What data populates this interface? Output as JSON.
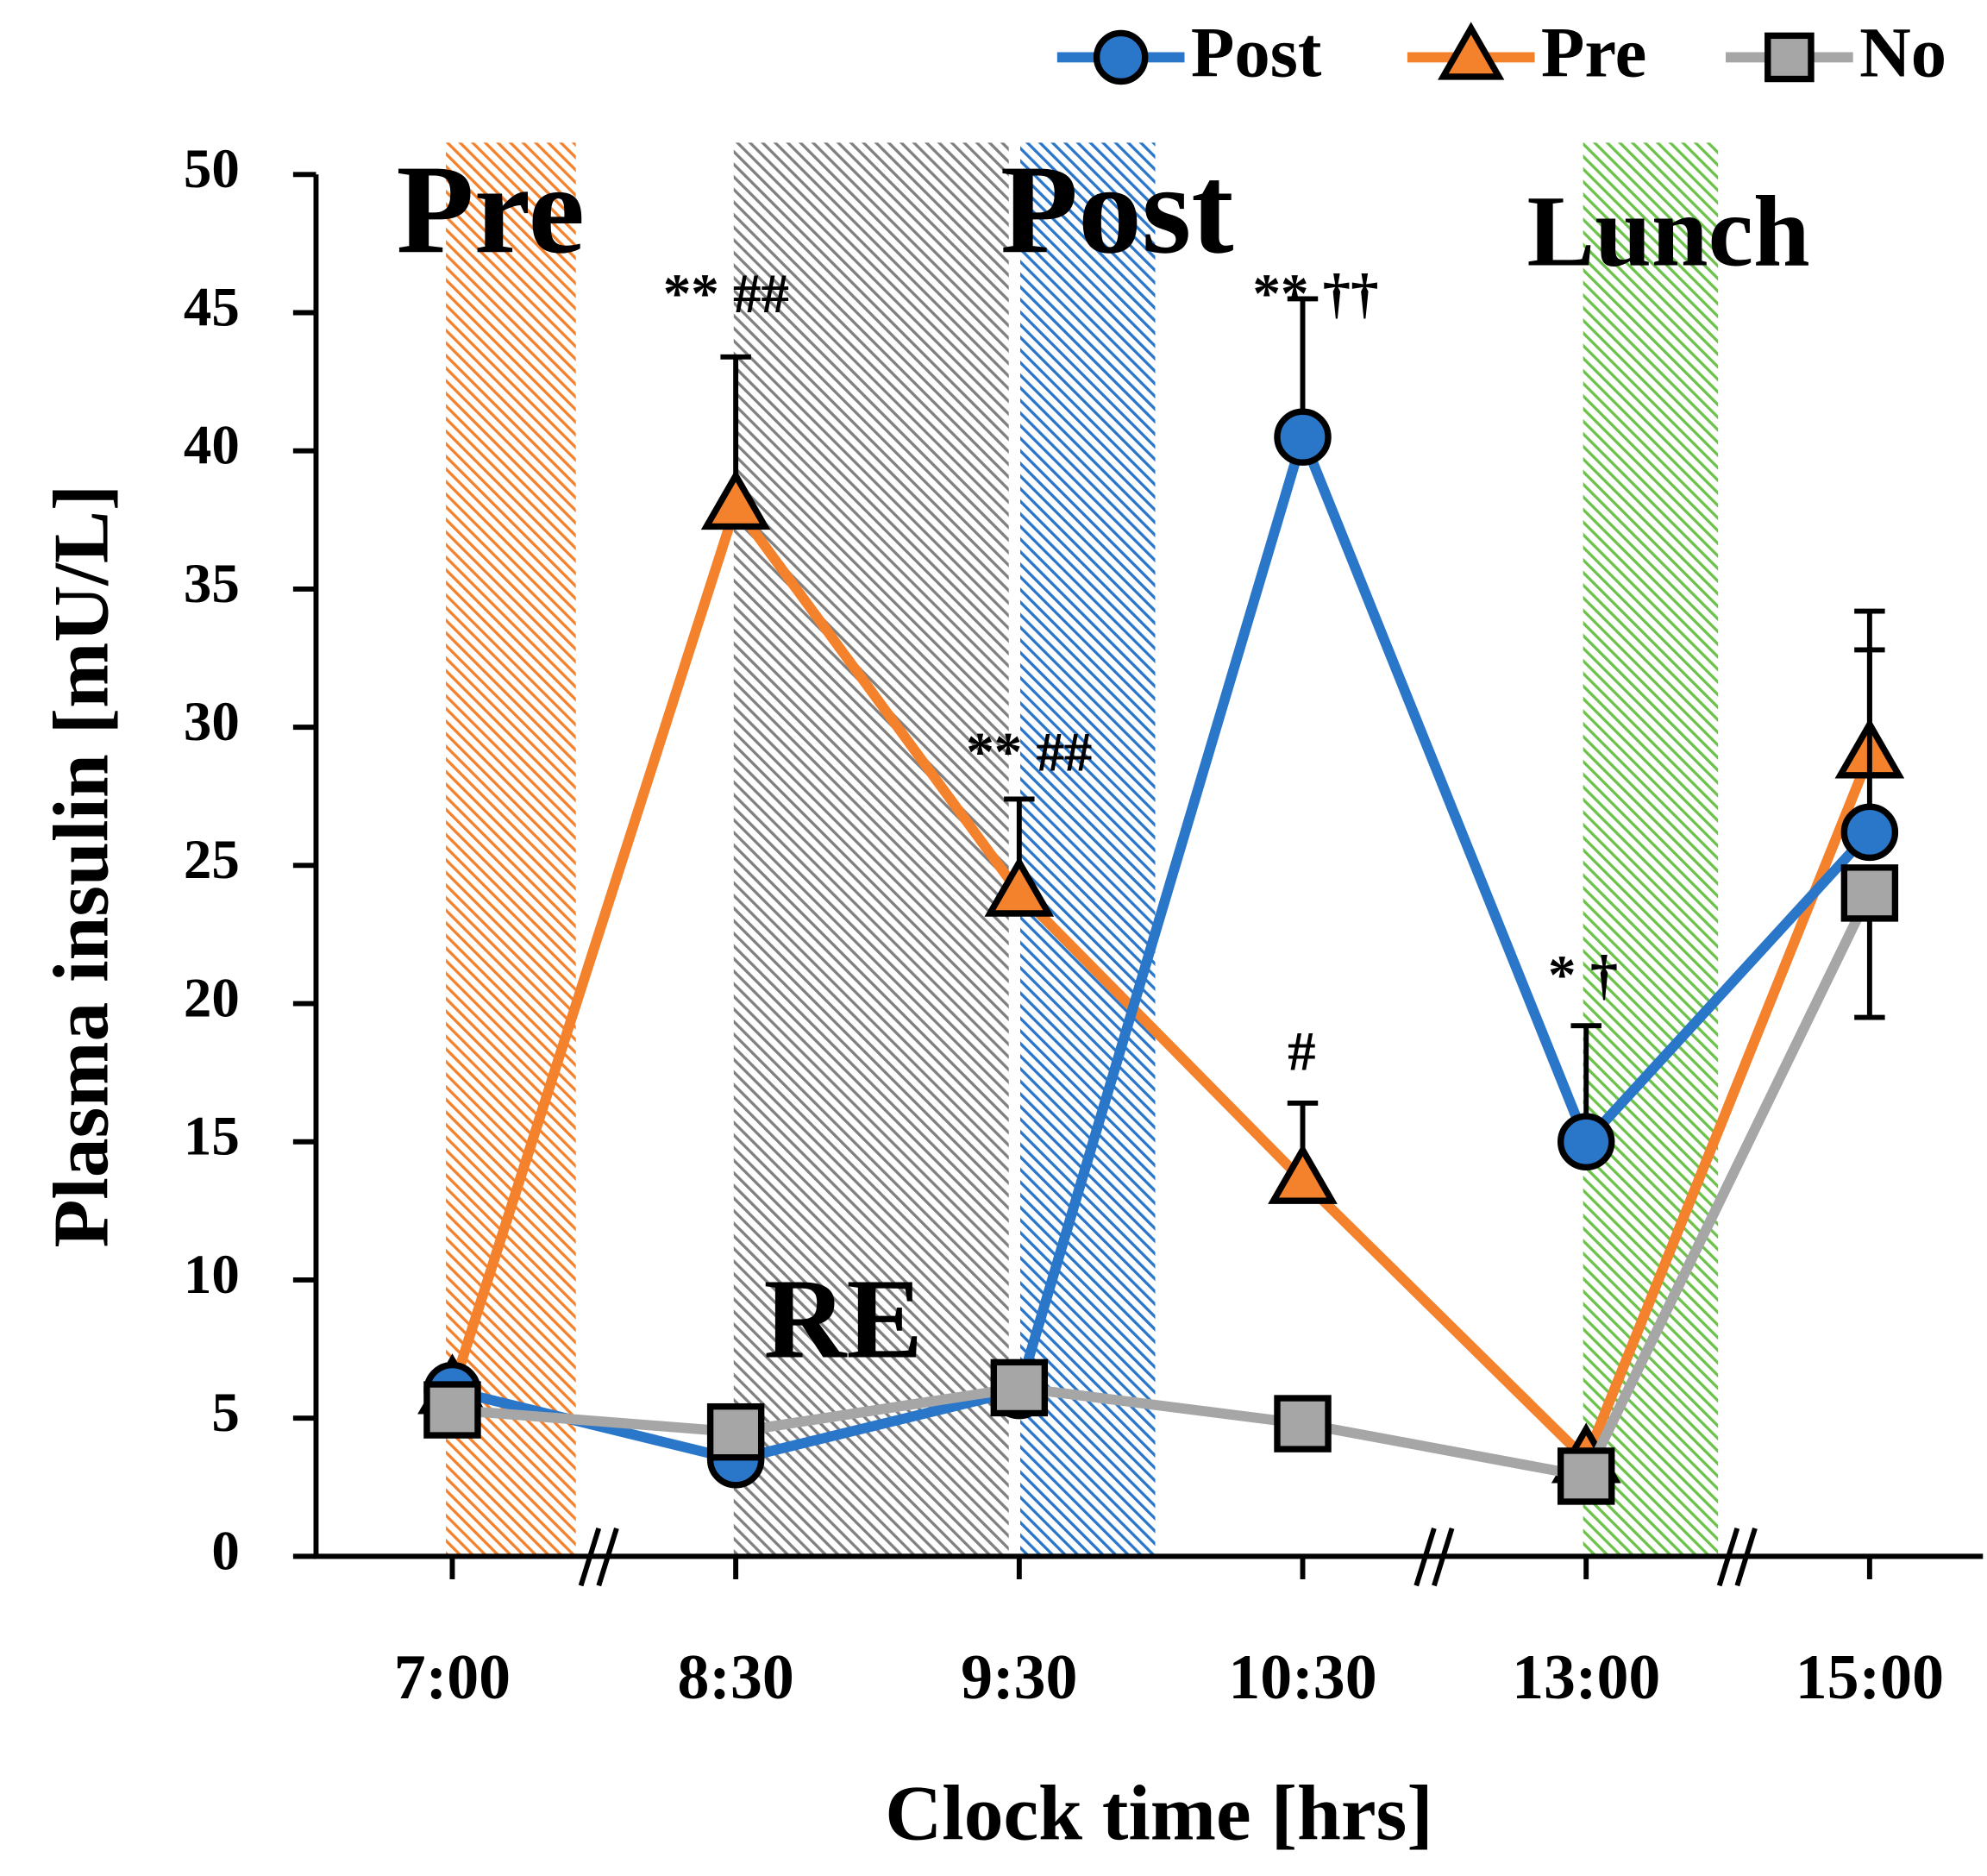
{
  "chart_data": {
    "type": "line",
    "xlabel": "Clock time [hrs]",
    "ylabel": "Plasma insulin [mU/L]",
    "categories": [
      "7:00",
      "8:30",
      "9:30",
      "10:30",
      "13:00",
      "15:00"
    ],
    "series": [
      {
        "name": "Post",
        "color": "#2a76c9",
        "marker": "circle",
        "values": [
          6,
          3.5,
          6,
          40.5,
          15,
          26.2
        ],
        "errors": [
          null,
          null,
          null,
          5,
          4.2,
          6.6
        ]
      },
      {
        "name": "Pre",
        "color": "#f4812c",
        "marker": "triangle",
        "values": [
          6,
          38,
          24,
          13.6,
          3.5,
          29
        ],
        "errors": [
          null,
          5.4,
          3.4,
          2.8,
          null,
          5.2
        ]
      },
      {
        "name": "No",
        "color": "#a6a6a6",
        "marker": "square",
        "values": [
          5.3,
          4.5,
          6.1,
          4.8,
          2.9,
          24
        ],
        "errors": [
          null,
          null,
          null,
          null,
          null,
          4.5
        ],
        "error_direction": "down"
      }
    ],
    "ylim": [
      0,
      50
    ],
    "yticks": [
      0,
      5,
      10,
      15,
      20,
      25,
      30,
      35,
      40,
      45,
      50
    ],
    "legend": "top-right",
    "regions": [
      {
        "label": "Pre",
        "color": "#f4812c"
      },
      {
        "label": "RE",
        "color": "#808080"
      },
      {
        "label": "Post",
        "color": "#2a76c9"
      },
      {
        "label": "Lunch",
        "color": "#6cc24a"
      }
    ],
    "annotations": [
      "** ##",
      "** ##",
      "** ††",
      "#",
      "* †"
    ]
  }
}
